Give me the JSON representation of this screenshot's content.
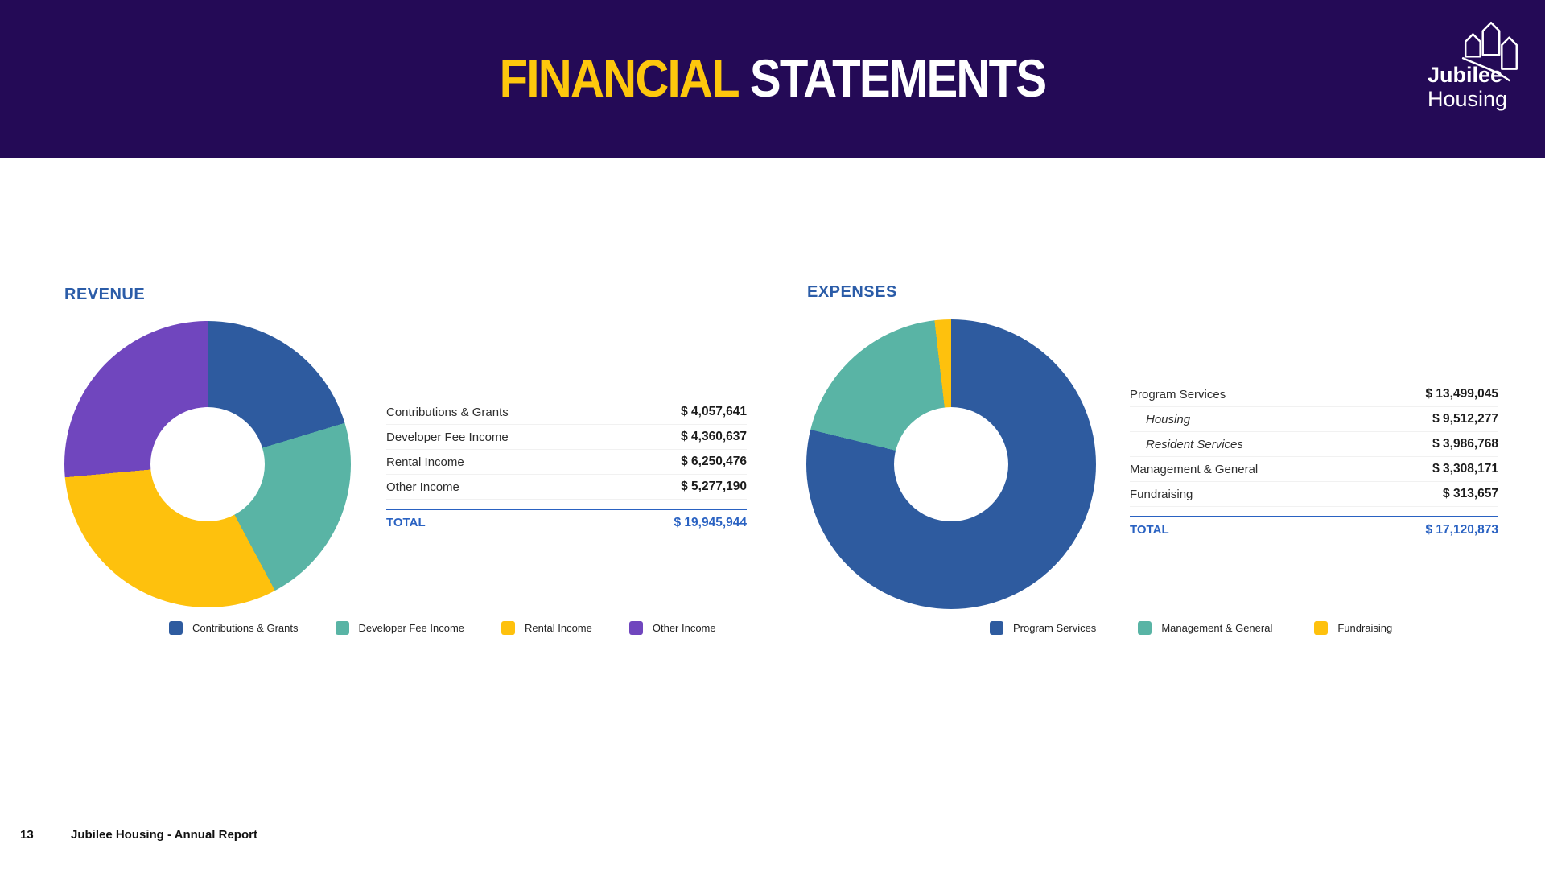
{
  "header": {
    "title_part1": "FINANCIAL",
    "title_part2": "STATEMENTS",
    "bg_color": "#240a56",
    "accent_color": "#fdc70d",
    "rest_color": "#ffffff"
  },
  "logo": {
    "line1": "Jubilee",
    "line2": "Housing",
    "icon": "houses-logo-icon"
  },
  "colors": {
    "heading_blue": "#2b5ca8",
    "total_blue": "#2a62c2",
    "slice_blue": "#2e5b9f",
    "slice_teal": "#59b4a5",
    "slice_yellow": "#fec10d",
    "slice_purple": "#7046be"
  },
  "revenue": {
    "heading": "REVENUE",
    "rows": [
      {
        "label": "Contributions & Grants",
        "value": "$ 4,057,641"
      },
      {
        "label": "Developer Fee Income",
        "value": "$ 4,360,637"
      },
      {
        "label": "Rental Income",
        "value": "$ 6,250,476"
      },
      {
        "label": "Other Income",
        "value": "$ 5,277,190"
      }
    ],
    "total_label": "TOTAL",
    "total_value": "$ 19,945,944",
    "legend": [
      {
        "label": "Contributions & Grants",
        "color": "#2e5b9f"
      },
      {
        "label": "Developer Fee Income",
        "color": "#59b4a5"
      },
      {
        "label": "Rental Income",
        "color": "#fec10d"
      },
      {
        "label": "Other Income",
        "color": "#7046be"
      }
    ]
  },
  "expenses": {
    "heading": "EXPENSES",
    "rows": [
      {
        "label": "Program Services",
        "value": "$ 13,499,045"
      },
      {
        "label": "Housing",
        "value": "$ 9,512,277",
        "indent": true
      },
      {
        "label": "Resident Services",
        "value": "$ 3,986,768",
        "indent": true
      },
      {
        "label": "Management & General",
        "value": "$ 3,308,171"
      },
      {
        "label": "Fundraising",
        "value": "$ 313,657"
      }
    ],
    "total_label": "TOTAL",
    "total_value": "$ 17,120,873",
    "legend": [
      {
        "label": "Program Services",
        "color": "#2e5b9f"
      },
      {
        "label": "Management & General",
        "color": "#59b4a5"
      },
      {
        "label": "Fundraising",
        "color": "#fec10d"
      }
    ]
  },
  "footer": {
    "page": "13",
    "text": "Jubilee Housing - Annual Report"
  },
  "chart_data": [
    {
      "type": "pie",
      "donut": true,
      "title": "REVENUE",
      "labels": [
        "Contributions & Grants",
        "Developer Fee Income",
        "Rental Income",
        "Other Income"
      ],
      "values": [
        4057641,
        4360637,
        6250476,
        5277190
      ],
      "total": 19945944,
      "colors": [
        "#2e5b9f",
        "#59b4a5",
        "#fec10d",
        "#7046be"
      ],
      "start_angle_deg": 0,
      "direction": "clockwise",
      "legend_position": "bottom"
    },
    {
      "type": "pie",
      "donut": true,
      "title": "EXPENSES",
      "labels": [
        "Program Services",
        "Management & General",
        "Fundraising"
      ],
      "values": [
        13499045,
        3308171,
        313657
      ],
      "total": 17120873,
      "colors": [
        "#2e5b9f",
        "#59b4a5",
        "#fec10d"
      ],
      "start_angle_deg": 0,
      "direction": "clockwise",
      "legend_position": "bottom"
    }
  ]
}
